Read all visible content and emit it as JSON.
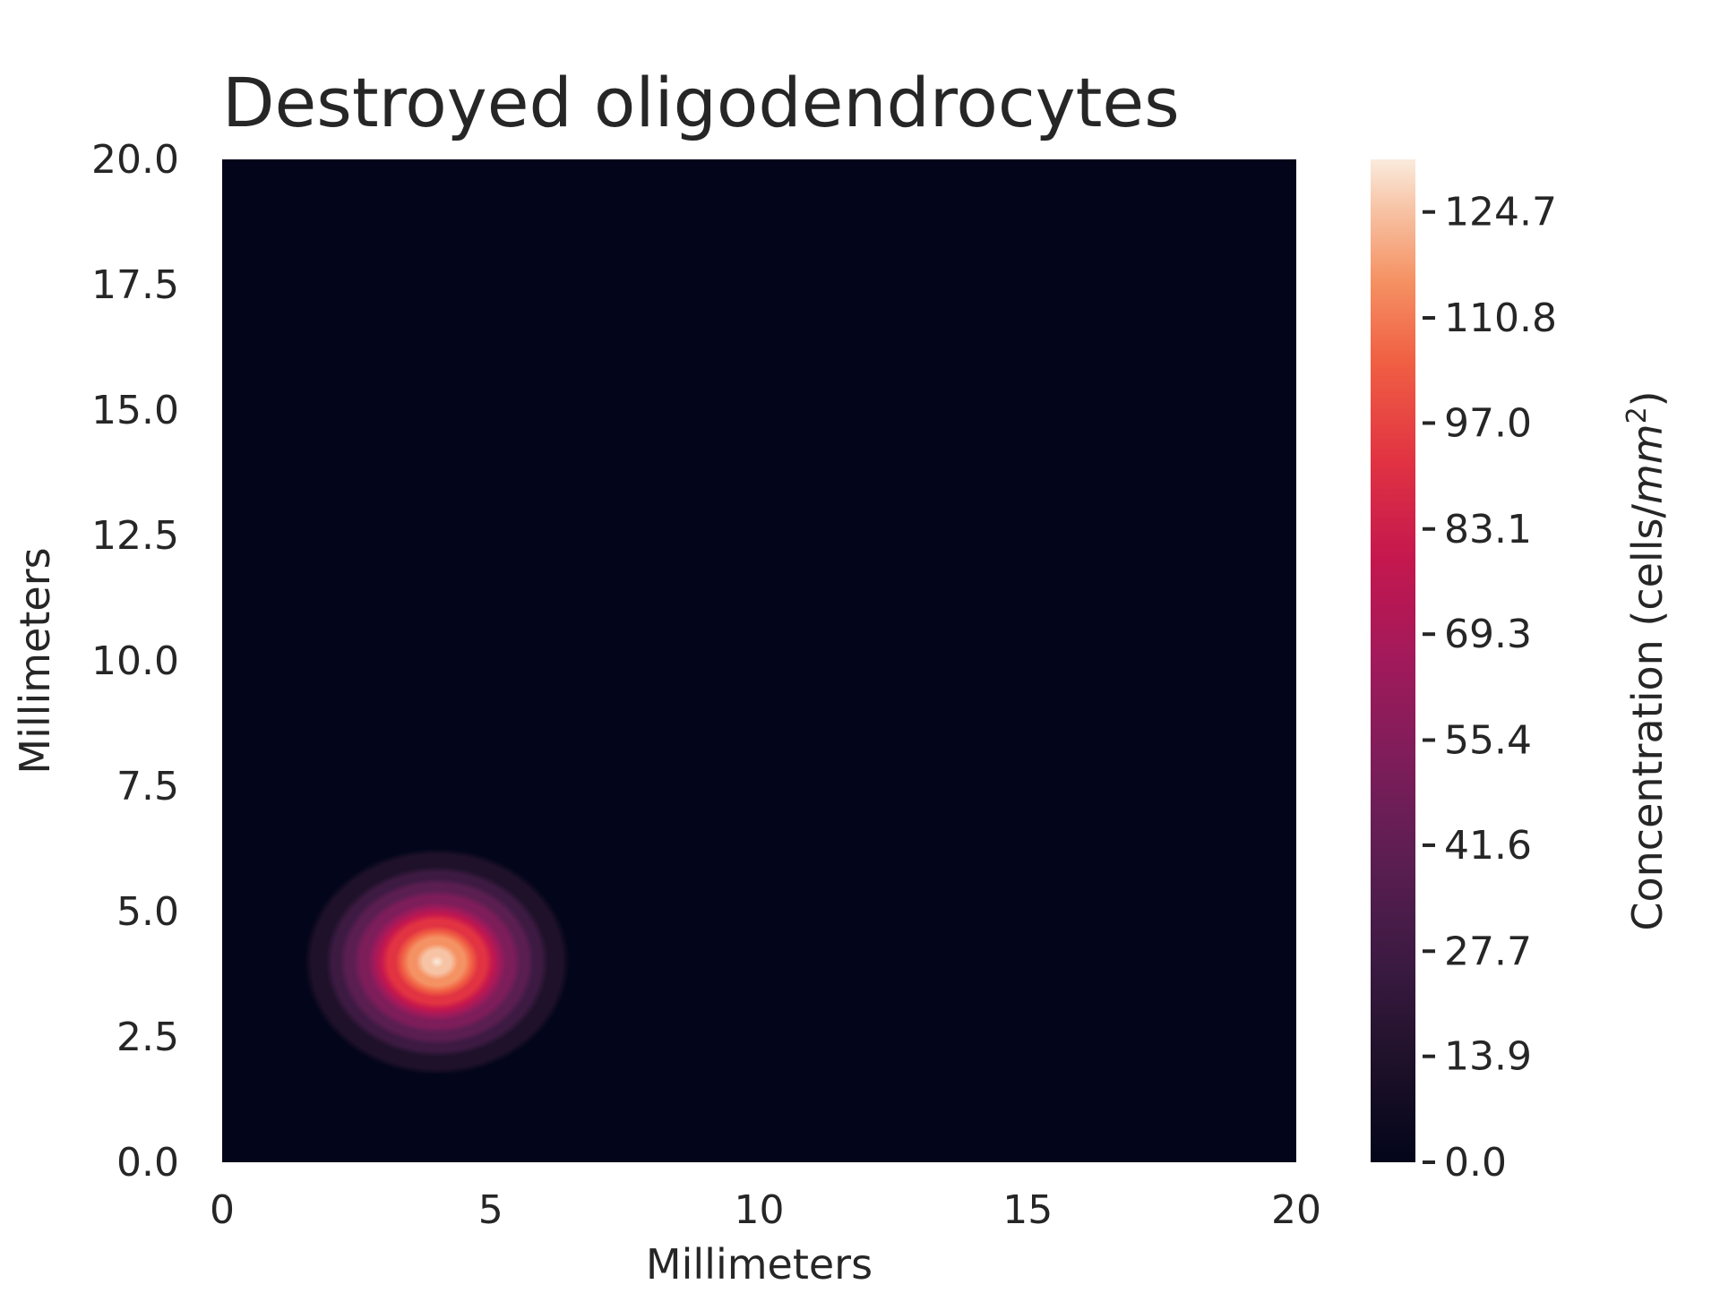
{
  "chart_data": {
    "type": "heatmap",
    "title": "Destroyed oligodendrocytes",
    "xlabel": "Millimeters",
    "ylabel": "Millimeters",
    "xlim": [
      0,
      20
    ],
    "ylim": [
      0,
      20
    ],
    "x_ticks": [
      "0",
      "5",
      "10",
      "15",
      "20"
    ],
    "y_ticks": [
      "0.0",
      "2.5",
      "5.0",
      "7.5",
      "10.0",
      "12.5",
      "15.0",
      "17.5",
      "20.0"
    ],
    "colorbar": {
      "label": "Concentration (cells/",
      "label_unit": "mm",
      "label_exponent": "2",
      "label_close": ")",
      "range": [
        0,
        131.6
      ],
      "ticks": [
        "0.0",
        "13.9",
        "27.7",
        "41.6",
        "55.4",
        "69.3",
        "83.1",
        "97.0",
        "110.8",
        "124.7"
      ],
      "colormap": "rocket"
    },
    "peak": {
      "x": 4.0,
      "y": 4.0,
      "value": 131.6
    },
    "blob_radius_mm": 2.2,
    "background_value": 0.0
  }
}
